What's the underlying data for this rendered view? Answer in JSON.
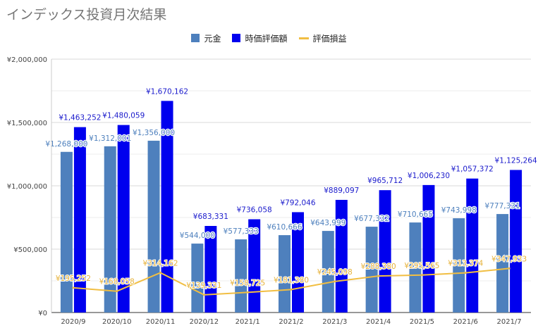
{
  "title": "インデックス投資月次結果",
  "colors": {
    "principal": "#4e80bd",
    "valuation": "#0000ee",
    "pnl": "#f1be42",
    "title": "#757575",
    "grid": "#d9d9d9",
    "axis_text": "#444444"
  },
  "legend": {
    "placement": "top-center",
    "items": [
      {
        "label": "元金",
        "marker": "box"
      },
      {
        "label": "時価評価額",
        "marker": "box"
      },
      {
        "label": "評価損益",
        "marker": "line"
      }
    ]
  },
  "chart_data": {
    "type": "bar",
    "title": "インデックス投資月次結果",
    "categories": [
      "2020/9",
      "2020/10",
      "2020/11",
      "2020/12",
      "2021/1",
      "2021/2",
      "2021/3",
      "2021/4",
      "2021/5",
      "2021/6",
      "2021/7"
    ],
    "series": [
      {
        "name": "元金",
        "type": "bar",
        "values": [
          1268000,
          1312001,
          1356000,
          544000,
          577333,
          610666,
          643999,
          677332,
          710665,
          743998,
          777331
        ],
        "labels": [
          "¥1,268,000",
          "¥1,312,001",
          "¥1,356,000",
          "¥544,000",
          "¥577,333",
          "¥610,666",
          "¥643,999",
          "¥677,332",
          "¥710,665",
          "¥743,998",
          "¥777,331"
        ]
      },
      {
        "name": "時価評価額",
        "type": "bar",
        "values": [
          1463252,
          1480059,
          1670162,
          683331,
          736058,
          792046,
          889097,
          965712,
          1006230,
          1057372,
          1125264
        ],
        "labels": [
          "¥1,463,252",
          "¥1,480,059",
          "¥1,670,162",
          "¥683,331",
          "¥736,058",
          "¥792,046",
          "¥889,097",
          "¥965,712",
          "¥1,006,230",
          "¥1,057,372",
          "¥1,125,264"
        ]
      },
      {
        "name": "評価損益",
        "type": "line",
        "values": [
          195252,
          168058,
          314162,
          139331,
          158725,
          181380,
          245098,
          288380,
          295565,
          313374,
          347933
        ],
        "labels": [
          "¥195,252",
          "¥168,058",
          "¥314,162",
          "¥139,331",
          "¥158,725",
          "¥181,380",
          "¥245,098",
          "¥288,380",
          "¥295,565",
          "¥313,374",
          "¥347,933"
        ]
      }
    ],
    "ylim": [
      0,
      2000000
    ],
    "yticks": [
      0,
      500000,
      1000000,
      1500000,
      2000000
    ],
    "ytick_labels": [
      "¥0",
      "¥500,000",
      "¥1,000,000",
      "¥1,500,000",
      "¥2,000,000"
    ],
    "grid": true,
    "xlabel": "",
    "ylabel": ""
  }
}
